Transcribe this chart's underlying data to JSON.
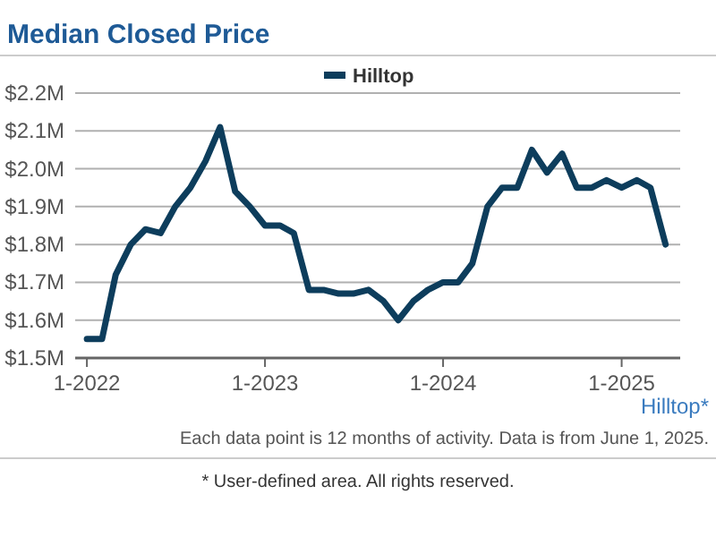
{
  "chart_data": {
    "type": "line",
    "title": "Median Closed Price",
    "x": [
      "2022-01",
      "2022-02",
      "2022-03",
      "2022-04",
      "2022-05",
      "2022-06",
      "2022-07",
      "2022-08",
      "2022-09",
      "2022-10",
      "2022-11",
      "2022-12",
      "2023-01",
      "2023-02",
      "2023-03",
      "2023-04",
      "2023-05",
      "2023-06",
      "2023-07",
      "2023-08",
      "2023-09",
      "2023-10",
      "2023-11",
      "2023-12",
      "2024-01",
      "2024-02",
      "2024-03",
      "2024-04",
      "2024-05",
      "2024-06",
      "2024-07",
      "2024-08",
      "2024-09",
      "2024-10",
      "2024-11",
      "2024-12",
      "2025-01",
      "2025-02",
      "2025-03",
      "2025-04"
    ],
    "series": [
      {
        "name": "Hilltop",
        "color": "#0d3d5c",
        "values": [
          1.55,
          1.55,
          1.72,
          1.8,
          1.84,
          1.83,
          1.9,
          1.95,
          2.02,
          2.11,
          1.94,
          1.9,
          1.85,
          1.85,
          1.83,
          1.68,
          1.68,
          1.67,
          1.67,
          1.68,
          1.65,
          1.6,
          1.65,
          1.68,
          1.7,
          1.7,
          1.75,
          1.9,
          1.95,
          1.95,
          2.05,
          1.99,
          2.04,
          1.95,
          1.95,
          1.97,
          1.95,
          1.97,
          1.95,
          1.8
        ]
      }
    ],
    "xlim": [
      "2021-12-08",
      "2025-05-01"
    ],
    "xticks": [
      {
        "value": "2022-01",
        "label": "1-2022"
      },
      {
        "value": "2023-01",
        "label": "1-2023"
      },
      {
        "value": "2024-01",
        "label": "1-2024"
      },
      {
        "value": "2025-01",
        "label": "1-2025"
      }
    ],
    "ylim": [
      1.5,
      2.2
    ],
    "yticks": [
      {
        "value": 1.5,
        "label": "$1.5M"
      },
      {
        "value": 1.6,
        "label": "$1.6M"
      },
      {
        "value": 1.7,
        "label": "$1.7M"
      },
      {
        "value": 1.8,
        "label": "$1.8M"
      },
      {
        "value": 1.9,
        "label": "$1.9M"
      },
      {
        "value": 2.0,
        "label": "$2.0M"
      },
      {
        "value": 2.1,
        "label": "$2.1M"
      },
      {
        "value": 2.2,
        "label": "$2.2M"
      }
    ],
    "grid": "y",
    "legend": "top",
    "marker": "none",
    "line_style": "solid",
    "annotations": [
      "Hilltop*",
      "Each data point is 12 months of activity. Data is from June 1, 2025.",
      "* User-defined area. All rights reserved."
    ]
  }
}
